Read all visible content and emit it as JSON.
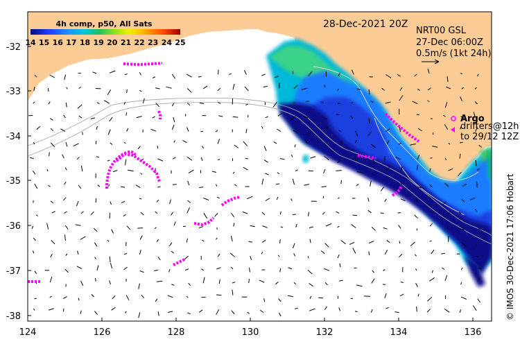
{
  "map": {
    "date_label": "28-Dec-2021 20Z",
    "model_label": "NRT00 GSL",
    "model_time": "27-Dec 06:00Z",
    "scale_label": "0.5m/s (1kt 24h)",
    "credit": "© IMOS 30-Dec-2021 17:06 Hobart",
    "legend": {
      "title": "Argo",
      "line2": "drifters@12h",
      "line3": "to 29/12 12Z"
    },
    "colorbar": {
      "title": "4h comp, p50, All Sats",
      "ticks": [
        "14",
        "15",
        "16",
        "17",
        "18",
        "19",
        "20",
        "21",
        "22",
        "23",
        "24",
        "25"
      ]
    },
    "axes": {
      "x_ticks": [
        "124",
        "126",
        "128",
        "130",
        "132",
        "134",
        "136"
      ],
      "y_ticks": [
        "-32",
        "-33",
        "-34",
        "-35",
        "-36",
        "-37",
        "-38"
      ],
      "x_range": [
        124,
        136.5
      ],
      "y_range": [
        -38.05,
        -31.25
      ]
    },
    "colors": {
      "land": "#fccc96",
      "drifter": "#ff00ff",
      "frame": "#000000"
    }
  }
}
